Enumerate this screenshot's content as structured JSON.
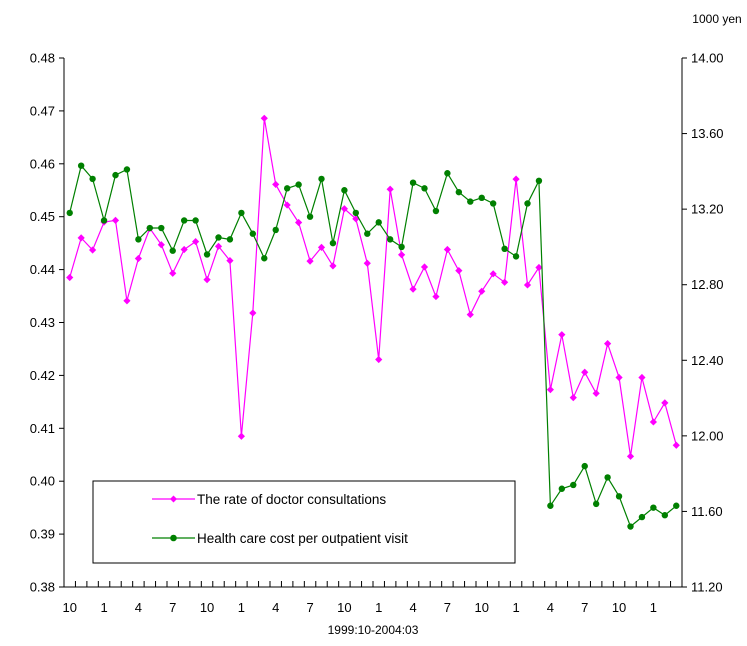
{
  "chart_data": {
    "type": "line",
    "title": "",
    "xlabel": "1999:10-2004:03",
    "ylabel_left": "",
    "ylabel_right": "1000 yen",
    "ylim_left": [
      0.38,
      0.48
    ],
    "ylim_right": [
      11.2,
      14.0
    ],
    "y_ticks_left": [
      "0.38",
      "0.39",
      "0.40",
      "0.41",
      "0.42",
      "0.43",
      "0.44",
      "0.45",
      "0.46",
      "0.47",
      "0.48"
    ],
    "y_ticks_right": [
      "11.20",
      "11.60",
      "12.00",
      "12.40",
      "12.80",
      "13.20",
      "13.60",
      "14.00"
    ],
    "x_tick_labels": [
      "10",
      "1",
      "4",
      "7",
      "10",
      "1",
      "4",
      "7",
      "10",
      "1",
      "4",
      "7",
      "10",
      "1",
      "4",
      "7",
      "10",
      "1"
    ],
    "x_start": "1999-10",
    "x_end": "2004-03",
    "legend_position": "bottom-left",
    "series": [
      {
        "name": "The rate of doctor consultations",
        "axis": "left",
        "color": "#ff00ff",
        "marker": "diamond",
        "values": [
          0.4385,
          0.446,
          0.4437,
          0.449,
          0.4493,
          0.4341,
          0.4421,
          0.4478,
          0.4447,
          0.4393,
          0.4438,
          0.4453,
          0.4381,
          0.4444,
          0.4417,
          0.4085,
          0.4318,
          0.4686,
          0.4561,
          0.4522,
          0.4489,
          0.4416,
          0.4442,
          0.4407,
          0.4515,
          0.4496,
          0.4412,
          0.423,
          0.4552,
          0.4428,
          0.4363,
          0.4405,
          0.4349,
          0.4438,
          0.4398,
          0.4315,
          0.4359,
          0.4392,
          0.4376,
          0.4571,
          0.4371,
          0.4404,
          0.4173,
          0.4277,
          0.4158,
          0.4206,
          0.4166,
          0.426,
          0.4196,
          0.4047,
          0.4196,
          0.4112,
          0.4148,
          0.4068
        ]
      },
      {
        "name": "Health care cost per outpatient visit",
        "axis": "right",
        "color": "#008000",
        "marker": "circle",
        "values": [
          13.18,
          13.43,
          13.36,
          13.14,
          13.38,
          13.41,
          13.04,
          13.1,
          13.1,
          12.98,
          13.14,
          13.14,
          12.96,
          13.05,
          13.04,
          13.18,
          13.07,
          12.94,
          13.09,
          13.31,
          13.33,
          13.16,
          13.36,
          13.02,
          13.3,
          13.18,
          13.07,
          13.13,
          13.04,
          13.0,
          13.34,
          13.31,
          13.19,
          13.39,
          13.29,
          13.24,
          13.26,
          13.23,
          12.99,
          12.95,
          13.23,
          13.35,
          11.63,
          11.72,
          11.74,
          11.84,
          11.64,
          11.78,
          11.68,
          11.52,
          11.57,
          11.62,
          11.58,
          11.63
        ]
      }
    ]
  }
}
